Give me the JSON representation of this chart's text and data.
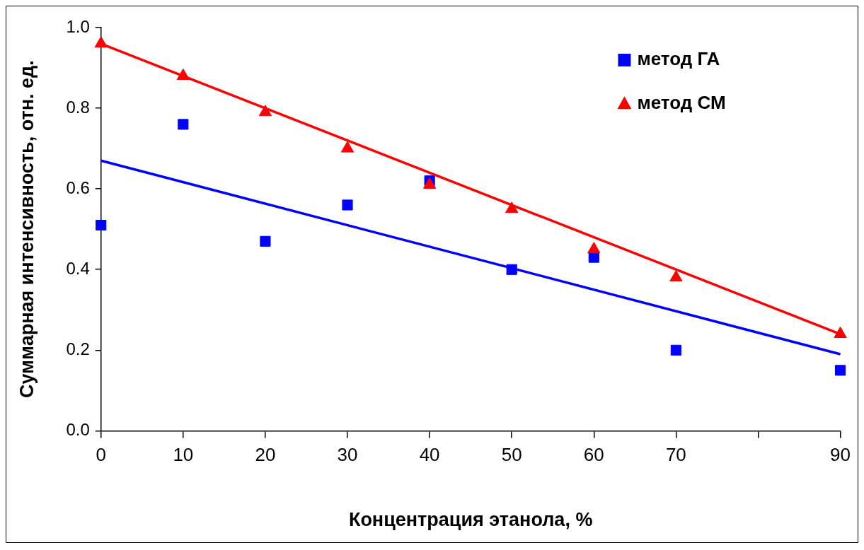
{
  "chart_data": {
    "type": "scatter",
    "xlabel": "Концентрация этанола, %",
    "ylabel": "Суммарная интенсивность, отн. ед.",
    "xlim": [
      0,
      90
    ],
    "xticks": [
      0,
      10,
      20,
      30,
      40,
      50,
      60,
      70,
      {
        "value": 80,
        "label": null
      },
      90
    ],
    "ylim": [
      0,
      1
    ],
    "yticks": [
      {
        "value": 0,
        "label": "0.0"
      },
      0.2,
      0.4,
      0.6,
      0.8,
      {
        "value": 1,
        "label": "1.0"
      }
    ],
    "grid": false,
    "legend": "top right",
    "series": [
      {
        "name": "метод ГА",
        "type": "scatter",
        "marker": "square",
        "color": "#0000ff",
        "x": [
          0,
          10,
          20,
          30,
          40,
          50,
          60,
          70,
          90
        ],
        "values": [
          0.51,
          0.76,
          0.47,
          0.56,
          0.62,
          0.4,
          0.43,
          0.2,
          0.15
        ]
      },
      {
        "name": "метод СМ",
        "type": "scatter",
        "marker": "triangle",
        "color": "#ff0000",
        "x": [
          0,
          10,
          20,
          30,
          40,
          50,
          60,
          70,
          90
        ],
        "values": [
          0.96,
          0.88,
          0.79,
          0.7,
          0.61,
          0.55,
          0.45,
          0.38,
          0.24
        ]
      },
      {
        "type": "line",
        "color": "#0000ff",
        "x": [
          0,
          90
        ],
        "values": [
          0.67,
          0.19
        ]
      },
      {
        "type": "line",
        "color": "#ff0000",
        "x": [
          0,
          90
        ],
        "values": [
          0.96,
          0.24
        ]
      }
    ]
  }
}
